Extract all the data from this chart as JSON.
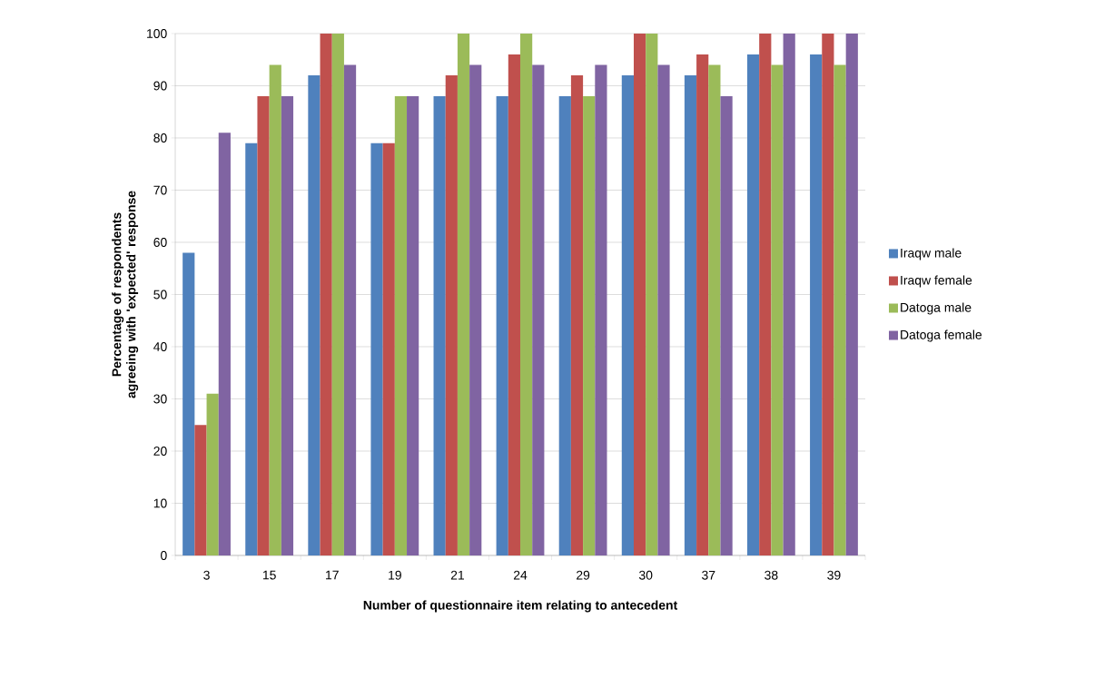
{
  "chart_data": {
    "type": "bar",
    "xlabel": "Number of questionnaire item relating to antecedent",
    "ylabel": "Percentage of respondents agreeing with 'expected' response",
    "categories": [
      "3",
      "15",
      "17",
      "19",
      "21",
      "24",
      "29",
      "30",
      "37",
      "38",
      "39"
    ],
    "series": [
      {
        "name": "Iraqw male",
        "color": "#4f81bd",
        "values": [
          58,
          79,
          92,
          79,
          88,
          88,
          88,
          92,
          92,
          96,
          96
        ]
      },
      {
        "name": "Iraqw female",
        "color": "#c0504d",
        "values": [
          25,
          88,
          100,
          79,
          92,
          96,
          92,
          100,
          96,
          100,
          100
        ]
      },
      {
        "name": "Datoga male",
        "color": "#9bbb59",
        "values": [
          31,
          94,
          100,
          88,
          100,
          100,
          88,
          100,
          94,
          94,
          94
        ]
      },
      {
        "name": "Datoga female",
        "color": "#8064a2",
        "values": [
          81,
          88,
          94,
          88,
          94,
          94,
          94,
          94,
          88,
          100,
          100
        ]
      }
    ],
    "ylim": [
      0,
      100
    ],
    "yticks": [
      0,
      10,
      20,
      30,
      40,
      50,
      60,
      70,
      80,
      90,
      100
    ],
    "grid": "y",
    "legend": "right"
  }
}
